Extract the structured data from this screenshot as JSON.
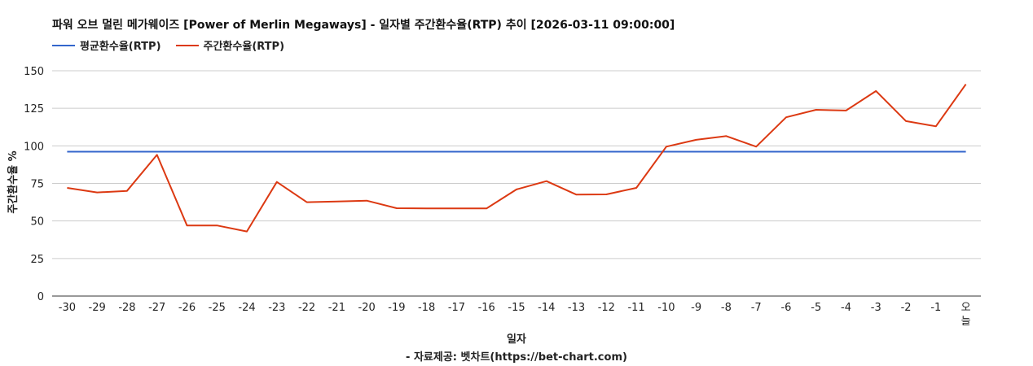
{
  "chart_data": {
    "type": "line",
    "title": "파워 오브 멀린 메가웨이즈 [Power of Merlin Megaways] - 일자별 주간환수율(RTP) 추이 [2026-03-11 09:00:00]",
    "xlabel": "일자",
    "ylabel": "주간환수율 %",
    "ylim": [
      0,
      150
    ],
    "yticks": [
      0,
      25,
      50,
      75,
      100,
      125,
      150
    ],
    "grid": true,
    "legend_position": "top-left",
    "categories": [
      "-30",
      "-29",
      "-28",
      "-27",
      "-26",
      "-25",
      "-24",
      "-23",
      "-22",
      "-21",
      "-20",
      "-19",
      "-18",
      "-17",
      "-16",
      "-15",
      "-14",
      "-13",
      "-12",
      "-11",
      "-10",
      "-9",
      "-8",
      "-7",
      "-6",
      "-5",
      "-4",
      "-3",
      "-2",
      "-1",
      "오늘"
    ],
    "series": [
      {
        "name": "평균환수율(RTP)",
        "color": "#3366cc",
        "values": [
          96.1,
          96.1,
          96.1,
          96.1,
          96.1,
          96.1,
          96.1,
          96.1,
          96.1,
          96.1,
          96.1,
          96.1,
          96.1,
          96.1,
          96.1,
          96.1,
          96.1,
          96.1,
          96.1,
          96.1,
          96.1,
          96.1,
          96.1,
          96.1,
          96.1,
          96.1,
          96.1,
          96.1,
          96.1,
          96.1,
          96.1
        ]
      },
      {
        "name": "주간환수율(RTP)",
        "color": "#dc3912",
        "values": [
          72,
          69,
          70,
          94,
          47,
          47,
          43,
          76,
          62.5,
          63,
          63.5,
          58.5,
          58.3,
          58.3,
          58.3,
          71,
          76.5,
          67.5,
          67.7,
          72,
          99.5,
          104,
          106.5,
          99.5,
          119,
          124,
          123.5,
          136.5,
          116.5,
          113,
          141
        ]
      }
    ]
  },
  "source_credit": "- 자료제공: 벳차트(https://bet-chart.com)"
}
